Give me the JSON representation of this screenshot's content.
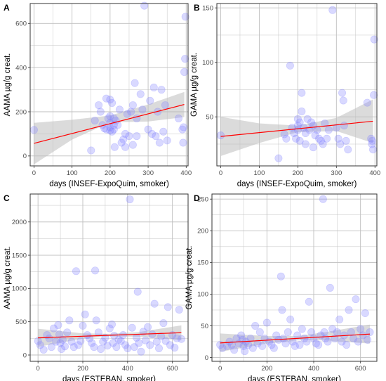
{
  "style": {
    "point_color": "#8080ff",
    "line_color": "#ff0000",
    "band_color": "#bebebe",
    "grid_color": "#bfbfbf",
    "panel_border": "#333333",
    "text_color": "#000000",
    "tick_text_color": "#4d4d4d"
  },
  "chart_data": [
    {
      "panel": "A",
      "type": "scatter",
      "xlabel": "days (INSEF-ExpoQuim, smoker)",
      "ylabel": "AAMA µg/g creat.",
      "xlim": [
        -10,
        405
      ],
      "ylim": [
        -45,
        690
      ],
      "xticks": [
        0,
        100,
        200,
        300,
        400
      ],
      "yticks": [
        0,
        200,
        400,
        600
      ],
      "grid": true,
      "points": [
        [
          0,
          118
        ],
        [
          150,
          25
        ],
        [
          160,
          160
        ],
        [
          170,
          230
        ],
        [
          175,
          200
        ],
        [
          180,
          140
        ],
        [
          185,
          125
        ],
        [
          190,
          260
        ],
        [
          190,
          120
        ],
        [
          195,
          170
        ],
        [
          200,
          255
        ],
        [
          200,
          180
        ],
        [
          200,
          150
        ],
        [
          200,
          130
        ],
        [
          200,
          115
        ],
        [
          205,
          240
        ],
        [
          205,
          110
        ],
        [
          210,
          170
        ],
        [
          210,
          140
        ],
        [
          210,
          120
        ],
        [
          212,
          40
        ],
        [
          215,
          160
        ],
        [
          220,
          140
        ],
        [
          225,
          210
        ],
        [
          230,
          60
        ],
        [
          235,
          75
        ],
        [
          240,
          100
        ],
        [
          240,
          40
        ],
        [
          245,
          190
        ],
        [
          250,
          90
        ],
        [
          255,
          200
        ],
        [
          260,
          230
        ],
        [
          260,
          50
        ],
        [
          265,
          330
        ],
        [
          270,
          90
        ],
        [
          270,
          170
        ],
        [
          280,
          280
        ],
        [
          285,
          210
        ],
        [
          290,
          680
        ],
        [
          300,
          120
        ],
        [
          305,
          250
        ],
        [
          310,
          100
        ],
        [
          315,
          310
        ],
        [
          320,
          90
        ],
        [
          325,
          200
        ],
        [
          330,
          60
        ],
        [
          335,
          300
        ],
        [
          340,
          110
        ],
        [
          345,
          230
        ],
        [
          350,
          70
        ],
        [
          380,
          170
        ],
        [
          390,
          120
        ],
        [
          392,
          60
        ],
        [
          393,
          130
        ],
        [
          395,
          380
        ],
        [
          397,
          440
        ],
        [
          398,
          630
        ]
      ],
      "trend": {
        "x": [
          0,
          395
        ],
        "y": [
          57,
          233
        ]
      },
      "band_upper": [
        [
          0,
          150
        ],
        [
          100,
          164
        ],
        [
          200,
          183
        ],
        [
          300,
          233
        ],
        [
          395,
          290
        ]
      ],
      "band_lower": [
        [
          0,
          -38
        ],
        [
          100,
          74
        ],
        [
          200,
          152
        ],
        [
          300,
          156
        ],
        [
          395,
          176
        ]
      ]
    },
    {
      "panel": "B",
      "type": "scatter",
      "xlabel": "days (INSEF-ExpoQuim, smoker)",
      "ylabel": "GAMA µg/g creat.",
      "xlim": [
        -10,
        405
      ],
      "ylim": [
        5,
        154
      ],
      "xticks": [
        0,
        100,
        200,
        300,
        400
      ],
      "yticks": [
        50,
        100,
        150
      ],
      "grid": true,
      "points": [
        [
          0,
          33
        ],
        [
          150,
          12
        ],
        [
          165,
          34
        ],
        [
          170,
          30
        ],
        [
          180,
          97
        ],
        [
          185,
          40
        ],
        [
          190,
          35
        ],
        [
          195,
          30
        ],
        [
          200,
          48
        ],
        [
          200,
          42
        ],
        [
          200,
          38
        ],
        [
          205,
          45
        ],
        [
          205,
          28
        ],
        [
          210,
          72
        ],
        [
          210,
          55
        ],
        [
          215,
          40
        ],
        [
          220,
          35
        ],
        [
          220,
          25
        ],
        [
          225,
          48
        ],
        [
          230,
          38
        ],
        [
          235,
          45
        ],
        [
          240,
          42
        ],
        [
          240,
          22
        ],
        [
          245,
          33
        ],
        [
          250,
          38
        ],
        [
          255,
          30
        ],
        [
          260,
          28
        ],
        [
          265,
          25
        ],
        [
          270,
          44
        ],
        [
          275,
          30
        ],
        [
          280,
          38
        ],
        [
          290,
          148
        ],
        [
          300,
          40
        ],
        [
          305,
          30
        ],
        [
          310,
          25
        ],
        [
          315,
          72
        ],
        [
          318,
          65
        ],
        [
          320,
          42
        ],
        [
          325,
          28
        ],
        [
          330,
          20
        ],
        [
          380,
          63
        ],
        [
          390,
          30
        ],
        [
          392,
          25
        ],
        [
          393,
          28
        ],
        [
          395,
          20
        ],
        [
          397,
          70
        ],
        [
          398,
          121
        ]
      ],
      "trend": {
        "x": [
          0,
          395
        ],
        "y": [
          32,
          46
        ]
      },
      "band_upper": [
        [
          0,
          50
        ],
        [
          100,
          44
        ],
        [
          200,
          42
        ],
        [
          300,
          49
        ],
        [
          395,
          66
        ]
      ],
      "band_lower": [
        [
          0,
          14
        ],
        [
          100,
          26
        ],
        [
          200,
          36
        ],
        [
          300,
          37
        ],
        [
          395,
          26
        ]
      ]
    },
    {
      "panel": "C",
      "type": "scatter",
      "xlabel": "days (ESTEBAN, smoker)",
      "ylabel": "AAMA µg/g creat.",
      "xlim": [
        -35,
        670
      ],
      "ylim": [
        -95,
        2420
      ],
      "xticks": [
        0,
        200,
        400,
        600
      ],
      "yticks": [
        0,
        500,
        1000,
        1500,
        2000
      ],
      "grid": true,
      "points": [
        [
          0,
          210
        ],
        [
          10,
          150
        ],
        [
          25,
          80
        ],
        [
          40,
          300
        ],
        [
          50,
          250
        ],
        [
          60,
          120
        ],
        [
          70,
          400
        ],
        [
          80,
          200
        ],
        [
          90,
          450
        ],
        [
          95,
          310
        ],
        [
          100,
          180
        ],
        [
          105,
          90
        ],
        [
          110,
          230
        ],
        [
          120,
          130
        ],
        [
          130,
          340
        ],
        [
          140,
          520
        ],
        [
          150,
          200
        ],
        [
          160,
          120
        ],
        [
          170,
          1260
        ],
        [
          180,
          150
        ],
        [
          190,
          210
        ],
        [
          200,
          440
        ],
        [
          210,
          610
        ],
        [
          220,
          300
        ],
        [
          230,
          250
        ],
        [
          240,
          180
        ],
        [
          250,
          120
        ],
        [
          255,
          1270
        ],
        [
          260,
          520
        ],
        [
          270,
          340
        ],
        [
          280,
          90
        ],
        [
          290,
          200
        ],
        [
          300,
          260
        ],
        [
          310,
          140
        ],
        [
          320,
          400
        ],
        [
          330,
          460
        ],
        [
          335,
          180
        ],
        [
          340,
          290
        ],
        [
          350,
          120
        ],
        [
          360,
          230
        ],
        [
          370,
          210
        ],
        [
          380,
          300
        ],
        [
          390,
          150
        ],
        [
          400,
          100
        ],
        [
          410,
          2340
        ],
        [
          420,
          410
        ],
        [
          430,
          120
        ],
        [
          440,
          260
        ],
        [
          445,
          950
        ],
        [
          450,
          180
        ],
        [
          460,
          50
        ],
        [
          470,
          350
        ],
        [
          480,
          220
        ],
        [
          490,
          420
        ],
        [
          500,
          150
        ],
        [
          510,
          310
        ],
        [
          520,
          770
        ],
        [
          530,
          200
        ],
        [
          540,
          100
        ],
        [
          550,
          280
        ],
        [
          560,
          480
        ],
        [
          570,
          210
        ],
        [
          580,
          720
        ],
        [
          590,
          150
        ],
        [
          600,
          300
        ],
        [
          610,
          110
        ],
        [
          620,
          250
        ],
        [
          630,
          680
        ],
        [
          640,
          240
        ]
      ],
      "trend": {
        "x": [
          0,
          640
        ],
        "y": [
          258,
          335
        ]
      },
      "band_upper": [
        [
          0,
          395
        ],
        [
          200,
          325
        ],
        [
          320,
          318
        ],
        [
          450,
          345
        ],
        [
          640,
          445
        ]
      ],
      "band_lower": [
        [
          0,
          123
        ],
        [
          200,
          245
        ],
        [
          320,
          282
        ],
        [
          450,
          275
        ],
        [
          640,
          222
        ]
      ]
    },
    {
      "panel": "D",
      "type": "scatter",
      "xlabel": "days (ESTEBAN, smoker)",
      "ylabel": "GAMA µg/g creat.",
      "xlim": [
        -35,
        670
      ],
      "ylim": [
        -6,
        258
      ],
      "xticks": [
        0,
        200,
        400,
        600
      ],
      "yticks": [
        0,
        50,
        100,
        150,
        200,
        250
      ],
      "grid": true,
      "points": [
        [
          0,
          20
        ],
        [
          10,
          15
        ],
        [
          30,
          18
        ],
        [
          40,
          25
        ],
        [
          50,
          20
        ],
        [
          60,
          12
        ],
        [
          70,
          30
        ],
        [
          80,
          22
        ],
        [
          90,
          35
        ],
        [
          95,
          28
        ],
        [
          100,
          18
        ],
        [
          105,
          10
        ],
        [
          110,
          25
        ],
        [
          120,
          20
        ],
        [
          130,
          30
        ],
        [
          140,
          15
        ],
        [
          150,
          50
        ],
        [
          160,
          22
        ],
        [
          170,
          40
        ],
        [
          180,
          18
        ],
        [
          190,
          30
        ],
        [
          200,
          55
        ],
        [
          210,
          25
        ],
        [
          220,
          20
        ],
        [
          230,
          15
        ],
        [
          240,
          35
        ],
        [
          250,
          28
        ],
        [
          260,
          128
        ],
        [
          265,
          75
        ],
        [
          270,
          30
        ],
        [
          280,
          22
        ],
        [
          290,
          40
        ],
        [
          300,
          60
        ],
        [
          310,
          25
        ],
        [
          320,
          18
        ],
        [
          330,
          35
        ],
        [
          340,
          20
        ],
        [
          350,
          45
        ],
        [
          360,
          30
        ],
        [
          370,
          25
        ],
        [
          380,
          88
        ],
        [
          390,
          40
        ],
        [
          400,
          30
        ],
        [
          410,
          22
        ],
        [
          420,
          20
        ],
        [
          430,
          35
        ],
        [
          440,
          250
        ],
        [
          445,
          40
        ],
        [
          450,
          30
        ],
        [
          460,
          25
        ],
        [
          470,
          110
        ],
        [
          480,
          45
        ],
        [
          490,
          30
        ],
        [
          500,
          40
        ],
        [
          510,
          60
        ],
        [
          520,
          25
        ],
        [
          530,
          35
        ],
        [
          540,
          20
        ],
        [
          550,
          75
        ],
        [
          560,
          40
        ],
        [
          570,
          30
        ],
        [
          580,
          92
        ],
        [
          590,
          25
        ],
        [
          600,
          45
        ],
        [
          610,
          35
        ],
        [
          620,
          70
        ],
        [
          630,
          28
        ],
        [
          640,
          40
        ]
      ],
      "trend": {
        "x": [
          0,
          640
        ],
        "y": [
          23,
          37
        ]
      },
      "band_upper": [
        [
          0,
          38
        ],
        [
          200,
          34
        ],
        [
          330,
          34
        ],
        [
          450,
          40
        ],
        [
          640,
          52
        ]
      ],
      "band_lower": [
        [
          0,
          9
        ],
        [
          200,
          22
        ],
        [
          330,
          27
        ],
        [
          450,
          27
        ],
        [
          640,
          22
        ]
      ]
    }
  ]
}
